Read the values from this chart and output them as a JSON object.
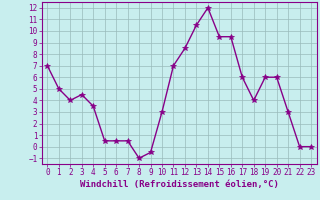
{
  "x": [
    0,
    1,
    2,
    3,
    4,
    5,
    6,
    7,
    8,
    9,
    10,
    11,
    12,
    13,
    14,
    15,
    16,
    17,
    18,
    19,
    20,
    21,
    22,
    23
  ],
  "y": [
    7,
    5,
    4,
    4.5,
    3.5,
    0.5,
    0.5,
    0.5,
    -1,
    -0.5,
    3,
    7,
    8.5,
    10.5,
    12,
    9.5,
    9.5,
    6,
    4,
    6,
    6,
    3,
    0,
    0
  ],
  "line_color": "#880088",
  "marker": "*",
  "marker_size": 4,
  "bg_color": "#c8eeee",
  "grid_color": "#99bbbb",
  "xlabel": "Windchill (Refroidissement éolien,°C)",
  "ylim": [
    -1.5,
    12.5
  ],
  "xlim": [
    -0.5,
    23.5
  ],
  "yticks": [
    -1,
    0,
    1,
    2,
    3,
    4,
    5,
    6,
    7,
    8,
    9,
    10,
    11,
    12
  ],
  "xticks": [
    0,
    1,
    2,
    3,
    4,
    5,
    6,
    7,
    8,
    9,
    10,
    11,
    12,
    13,
    14,
    15,
    16,
    17,
    18,
    19,
    20,
    21,
    22,
    23
  ],
  "tick_label_size": 5.5,
  "xlabel_size": 6.5,
  "axis_color": "#880088",
  "spine_color": "#880088",
  "linewidth": 1.0
}
